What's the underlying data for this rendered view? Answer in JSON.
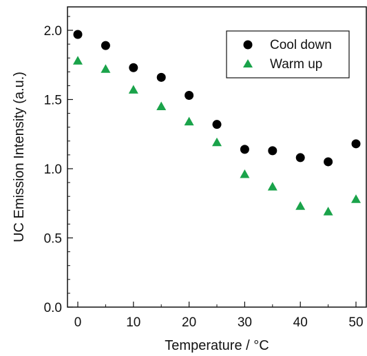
{
  "chart_data": {
    "type": "scatter",
    "xlabel": "Temperature / °C",
    "ylabel": "UC Emission Intensity (a.u.)",
    "xlim": [
      -2,
      52
    ],
    "ylim": [
      0,
      2.15
    ],
    "x_ticks": [
      0,
      10,
      20,
      30,
      40,
      50
    ],
    "y_ticks": [
      0.0,
      0.5,
      1.0,
      1.5,
      2.0
    ],
    "y_tick_labels": [
      "0.0",
      "0.5",
      "1.0",
      "1.5",
      "2.0"
    ],
    "grid": false,
    "legend_position": "top-right",
    "series": [
      {
        "name": "Cool down",
        "marker": "circle",
        "color": "#000000",
        "x": [
          0,
          5,
          10,
          15,
          20,
          25,
          30,
          35,
          40,
          45,
          50
        ],
        "y": [
          1.97,
          1.89,
          1.73,
          1.66,
          1.53,
          1.32,
          1.14,
          1.13,
          1.08,
          1.05,
          1.18
        ]
      },
      {
        "name": "Warm up",
        "marker": "triangle",
        "color": "#1aa34a",
        "x": [
          0,
          5,
          10,
          15,
          20,
          25,
          30,
          35,
          40,
          45,
          50
        ],
        "y": [
          1.78,
          1.72,
          1.57,
          1.45,
          1.34,
          1.19,
          0.96,
          0.87,
          0.73,
          0.69,
          0.78
        ]
      }
    ]
  }
}
